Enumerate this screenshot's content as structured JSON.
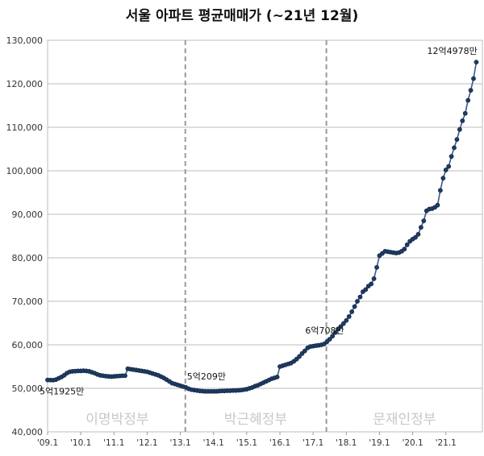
{
  "chart_data": {
    "type": "line",
    "title": "서울 아파트 평균매매가 (~21년 12월)",
    "ylim": [
      40000,
      130000
    ],
    "xlim": [
      2009.0,
      2022.1
    ],
    "y_ticks": [
      {
        "value": 40000,
        "label": "40,000"
      },
      {
        "value": 50000,
        "label": "50,000"
      },
      {
        "value": 60000,
        "label": "60,000"
      },
      {
        "value": 70000,
        "label": "70,000"
      },
      {
        "value": 80000,
        "label": "80,000"
      },
      {
        "value": 90000,
        "label": "90,000"
      },
      {
        "value": 100000,
        "label": "100,000"
      },
      {
        "value": 110000,
        "label": "110,000"
      },
      {
        "value": 120000,
        "label": "120,000"
      },
      {
        "value": 130000,
        "label": "130,000"
      }
    ],
    "x_ticks": [
      {
        "value": 2009.0,
        "label": "'09.1"
      },
      {
        "value": 2010.0,
        "label": "'10.1"
      },
      {
        "value": 2011.0,
        "label": "'11.1"
      },
      {
        "value": 2012.0,
        "label": "'12.1"
      },
      {
        "value": 2013.0,
        "label": "'13.1"
      },
      {
        "value": 2014.0,
        "label": "'14.1"
      },
      {
        "value": 2015.0,
        "label": "'15.1"
      },
      {
        "value": 2016.0,
        "label": "'16.1"
      },
      {
        "value": 2017.0,
        "label": "'17.1"
      },
      {
        "value": 2018.0,
        "label": "'18.1"
      },
      {
        "value": 2019.0,
        "label": "'19.1"
      },
      {
        "value": 2020.0,
        "label": "'20.1"
      },
      {
        "value": 2021.0,
        "label": "'21.1"
      }
    ],
    "grid": true,
    "line_color": "#3a5a8a",
    "marker_color": "#1f3b63",
    "divider_color": "#999999",
    "era_label_color": "#c8c8c8",
    "dividers": [
      2013.15,
      2017.4
    ],
    "eras": [
      {
        "label": "이명박정부",
        "x": 2011.1
      },
      {
        "label": "박근혜정부",
        "x": 2015.27
      },
      {
        "label": "문재인정부",
        "x": 2019.75
      }
    ],
    "annotations": [
      {
        "text": "5억1925만",
        "x": 2009.0,
        "y": 51925,
        "position": "below"
      },
      {
        "text": "5억209만",
        "x": 2013.15,
        "y": 50209,
        "position": "above"
      },
      {
        "text": "6억708만",
        "x": 2017.3,
        "y": 60708,
        "position": "above"
      },
      {
        "text": "12억4978만",
        "x": 2021.9,
        "y": 124978,
        "position": "above"
      }
    ],
    "series": [
      {
        "x": [
          2009.0,
          2009.083,
          2009.167,
          2009.25,
          2009.333,
          2009.417,
          2009.5,
          2009.583,
          2009.667,
          2009.75,
          2009.833,
          2009.917,
          2010.0,
          2010.083,
          2010.167,
          2010.25,
          2010.333,
          2010.417,
          2010.5,
          2010.583,
          2010.667,
          2010.75,
          2010.833,
          2010.917,
          2011.0,
          2011.083,
          2011.167,
          2011.25,
          2011.333,
          2011.417,
          2011.5,
          2011.583,
          2011.667,
          2011.75,
          2011.833,
          2011.917,
          2012.0,
          2012.083,
          2012.167,
          2012.25,
          2012.333,
          2012.417,
          2012.5,
          2012.583,
          2012.667,
          2012.75,
          2012.833,
          2012.917,
          2013.0,
          2013.083,
          2013.167,
          2013.25,
          2013.333,
          2013.417,
          2013.5,
          2013.583,
          2013.667,
          2013.75,
          2013.833,
          2013.917,
          2014.0,
          2014.083,
          2014.167,
          2014.25,
          2014.333,
          2014.417,
          2014.5,
          2014.583,
          2014.667,
          2014.75,
          2014.833,
          2014.917,
          2015.0,
          2015.083,
          2015.167,
          2015.25,
          2015.333,
          2015.417,
          2015.5,
          2015.583,
          2015.667,
          2015.75,
          2015.833,
          2015.917,
          2016.0,
          2016.083,
          2016.167,
          2016.25,
          2016.333,
          2016.417,
          2016.5,
          2016.583,
          2016.667,
          2016.75,
          2016.833,
          2016.917,
          2017.0,
          2017.083,
          2017.167,
          2017.25,
          2017.333,
          2017.417,
          2017.5,
          2017.583,
          2017.667,
          2017.75,
          2017.833,
          2017.917,
          2018.0,
          2018.083,
          2018.167,
          2018.25,
          2018.333,
          2018.417,
          2018.5,
          2018.583,
          2018.667,
          2018.75,
          2018.833,
          2018.917,
          2019.0,
          2019.083,
          2019.167,
          2019.25,
          2019.333,
          2019.417,
          2019.5,
          2019.583,
          2019.667,
          2019.75,
          2019.833,
          2019.917,
          2020.0,
          2020.083,
          2020.167,
          2020.25,
          2020.333,
          2020.417,
          2020.5,
          2020.583,
          2020.667,
          2020.75,
          2020.833,
          2020.917,
          2021.0,
          2021.083,
          2021.167,
          2021.25,
          2021.333,
          2021.417,
          2021.5,
          2021.583,
          2021.667,
          2021.75,
          2021.833,
          2021.917
        ],
        "values": [
          51925,
          51900,
          51880,
          52000,
          52300,
          52600,
          53000,
          53500,
          53800,
          53900,
          53950,
          54000,
          54000,
          54050,
          54000,
          53900,
          53700,
          53500,
          53200,
          53000,
          52900,
          52800,
          52750,
          52700,
          52750,
          52800,
          52850,
          52900,
          52900,
          54500,
          54400,
          54300,
          54200,
          54100,
          54000,
          53900,
          53800,
          53600,
          53400,
          53200,
          53000,
          52700,
          52400,
          52000,
          51600,
          51200,
          51000,
          50800,
          50600,
          50400,
          50209,
          49900,
          49700,
          49600,
          49500,
          49400,
          49350,
          49300,
          49300,
          49300,
          49300,
          49300,
          49350,
          49400,
          49400,
          49450,
          49450,
          49500,
          49500,
          49550,
          49600,
          49700,
          49800,
          50000,
          50200,
          50500,
          50700,
          51000,
          51300,
          51600,
          51900,
          52200,
          52400,
          52600,
          55000,
          55200,
          55400,
          55600,
          55800,
          56200,
          56700,
          57300,
          58000,
          58600,
          59300,
          59600,
          59700,
          59800,
          59900,
          60000,
          60200,
          60708,
          61300,
          62000,
          62800,
          63600,
          64200,
          64900,
          65600,
          66500,
          67600,
          68800,
          70000,
          71000,
          72200,
          72700,
          73500,
          74000,
          75200,
          77800,
          80500,
          81000,
          81500,
          81400,
          81300,
          81200,
          81100,
          81200,
          81500,
          82000,
          83000,
          83800,
          84300,
          84700,
          85400,
          87000,
          88500,
          90800,
          91200,
          91300,
          91600,
          92100,
          95500,
          98300,
          100200,
          101000,
          103300,
          105300,
          107200,
          109500,
          111500,
          113200,
          116200,
          118500,
          121200,
          124978
        ]
      }
    ]
  }
}
